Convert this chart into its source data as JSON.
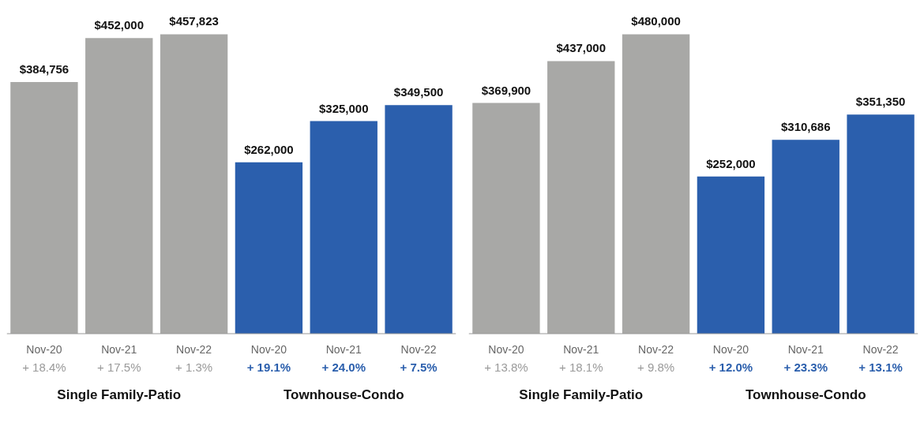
{
  "chart_data": [
    {
      "type": "bar",
      "categories": [
        "Nov-20",
        "Nov-21",
        "Nov-22",
        "Nov-20",
        "Nov-21",
        "Nov-22"
      ],
      "values": [
        384756,
        452000,
        457823,
        262000,
        325000,
        349500
      ],
      "colors": [
        "#a8a8a6",
        "#a8a8a6",
        "#a8a8a6",
        "#2b5fad",
        "#2b5fad",
        "#2b5fad"
      ],
      "value_labels": [
        "$384,756",
        "$452,000",
        "$457,823",
        "$262,000",
        "$325,000",
        "$349,500"
      ],
      "annotations": [
        "+ 18.4%",
        "+ 17.5%",
        "+ 1.3%",
        "+ 19.1%",
        "+ 24.0%",
        "+ 7.5%",
        "Single Family-Patio",
        "Townhouse-Condo"
      ]
    },
    {
      "type": "bar",
      "categories": [
        "Nov-20",
        "Nov-21",
        "Nov-22",
        "Nov-20",
        "Nov-21",
        "Nov-22"
      ],
      "values": [
        369900,
        437000,
        480000,
        252000,
        310686,
        351350
      ],
      "colors": [
        "#a8a8a6",
        "#a8a8a6",
        "#a8a8a6",
        "#2b5fad",
        "#2b5fad",
        "#2b5fad"
      ],
      "value_labels": [
        "$369,900",
        "$437,000",
        "$480,000",
        "$252,000",
        "$310,686",
        "$351,350"
      ],
      "annotations": [
        "+ 13.8%",
        "+ 18.1%",
        "+ 9.8%",
        "+ 12.0%",
        "+ 23.3%",
        "+ 13.1%",
        "Single Family-Patio",
        "Townhouse-Condo"
      ]
    }
  ]
}
